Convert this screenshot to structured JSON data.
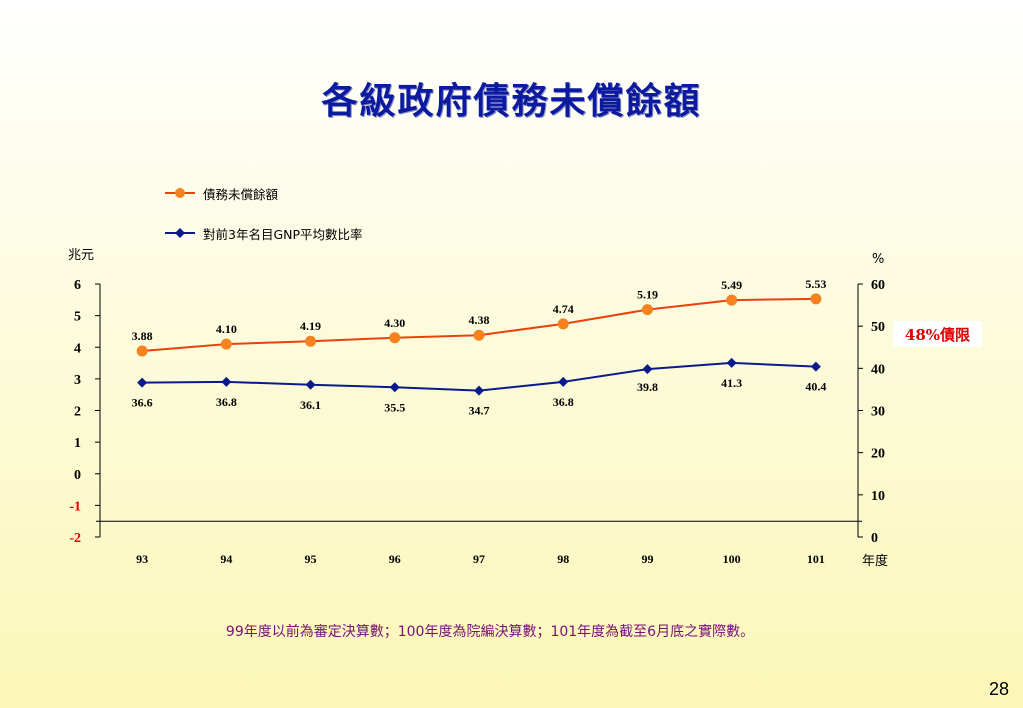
{
  "title": "各級政府債務未償餘額",
  "legend": {
    "series1": "債務未償餘額",
    "series2": "對前3年名目GNP平均數比率"
  },
  "left_unit": "兆元",
  "right_unit": "%",
  "x_unit": "年度",
  "limit_label": "48%債限",
  "note": "99年度以前為審定決算數；100年度為院編決算數；101年度為截至6月底之實際數。",
  "page_number": "28",
  "colors": {
    "series1": "#e8420c",
    "series1_marker": "#f5821f",
    "series2": "#0a1a8c",
    "title": "#0b1a9e",
    "limit": "#e00000",
    "note": "#7a0f7a"
  },
  "chart_data": {
    "type": "line",
    "categories": [
      "93",
      "94",
      "95",
      "96",
      "97",
      "98",
      "99",
      "100",
      "101"
    ],
    "series": [
      {
        "name": "債務未償餘額",
        "axis": "left",
        "values": [
          3.88,
          4.1,
          4.19,
          4.3,
          4.38,
          4.74,
          5.19,
          5.49,
          5.53
        ],
        "labels": [
          "3.88",
          "4.10",
          "4.19",
          "4.30",
          "4.38",
          "4.74",
          "5.19",
          "5.49",
          "5.53"
        ]
      },
      {
        "name": "對前3年名目GNP平均數比率",
        "axis": "right",
        "values": [
          36.6,
          36.8,
          36.1,
          35.5,
          34.7,
          36.8,
          39.8,
          41.3,
          40.4
        ],
        "labels": [
          "36.6",
          "36.8",
          "36.1",
          "35.5",
          "34.7",
          "36.8",
          "39.8",
          "41.3",
          "40.4"
        ]
      }
    ],
    "left_axis": {
      "ticks": [
        "6",
        "5",
        "4",
        "3",
        "2",
        "1",
        "0",
        "-1",
        "-2"
      ],
      "ylim": [
        -2,
        6
      ]
    },
    "right_axis": {
      "ticks": [
        "60",
        "50",
        "40",
        "30",
        "20",
        "10",
        "0"
      ],
      "ylim": [
        0,
        60
      ]
    },
    "grid": false,
    "legend_position": "top-left"
  }
}
